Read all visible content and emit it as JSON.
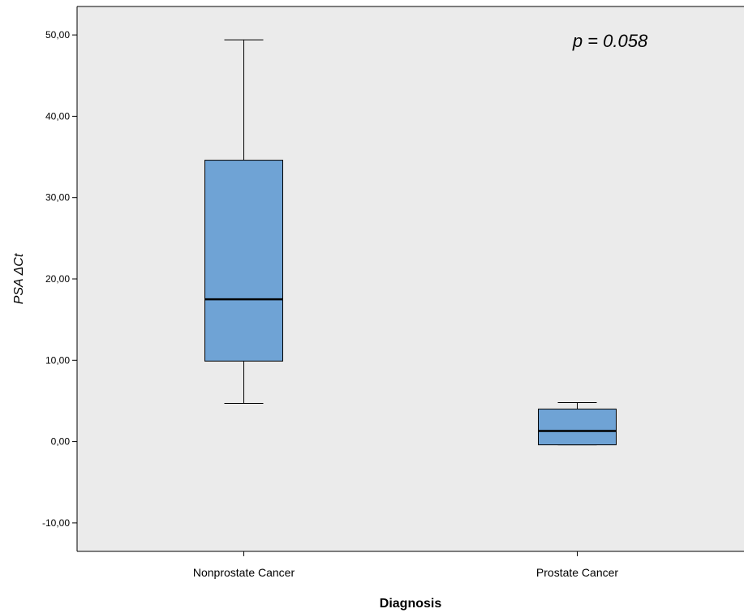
{
  "chart_data": {
    "type": "box",
    "title": "",
    "xlabel": "Diagnosis",
    "ylabel": "PSA ΔCt",
    "ylim": [
      -13.5,
      53.5
    ],
    "yticks": [
      -10,
      0,
      10,
      20,
      30,
      40,
      50
    ],
    "ytick_labels": [
      "-10,00",
      "0,00",
      "10,00",
      "20,00",
      "30,00",
      "40,00",
      "50,00"
    ],
    "grid": false,
    "categories": [
      "Nonprostate Cancer",
      "Prostate Cancer"
    ],
    "boxes": [
      {
        "category": "Nonprostate Cancer",
        "min": 4.7,
        "q1": 9.9,
        "median": 17.5,
        "q3": 34.6,
        "max": 49.4
      },
      {
        "category": "Prostate Cancer",
        "min": -0.4,
        "q1": -0.4,
        "median": 1.3,
        "q3": 4.0,
        "max": 4.8
      }
    ],
    "annotation": "p = 0.058",
    "colors": {
      "plot_background": "#ebebeb",
      "box_fill": "#6fa3d5",
      "box_stroke": "#000000"
    }
  }
}
